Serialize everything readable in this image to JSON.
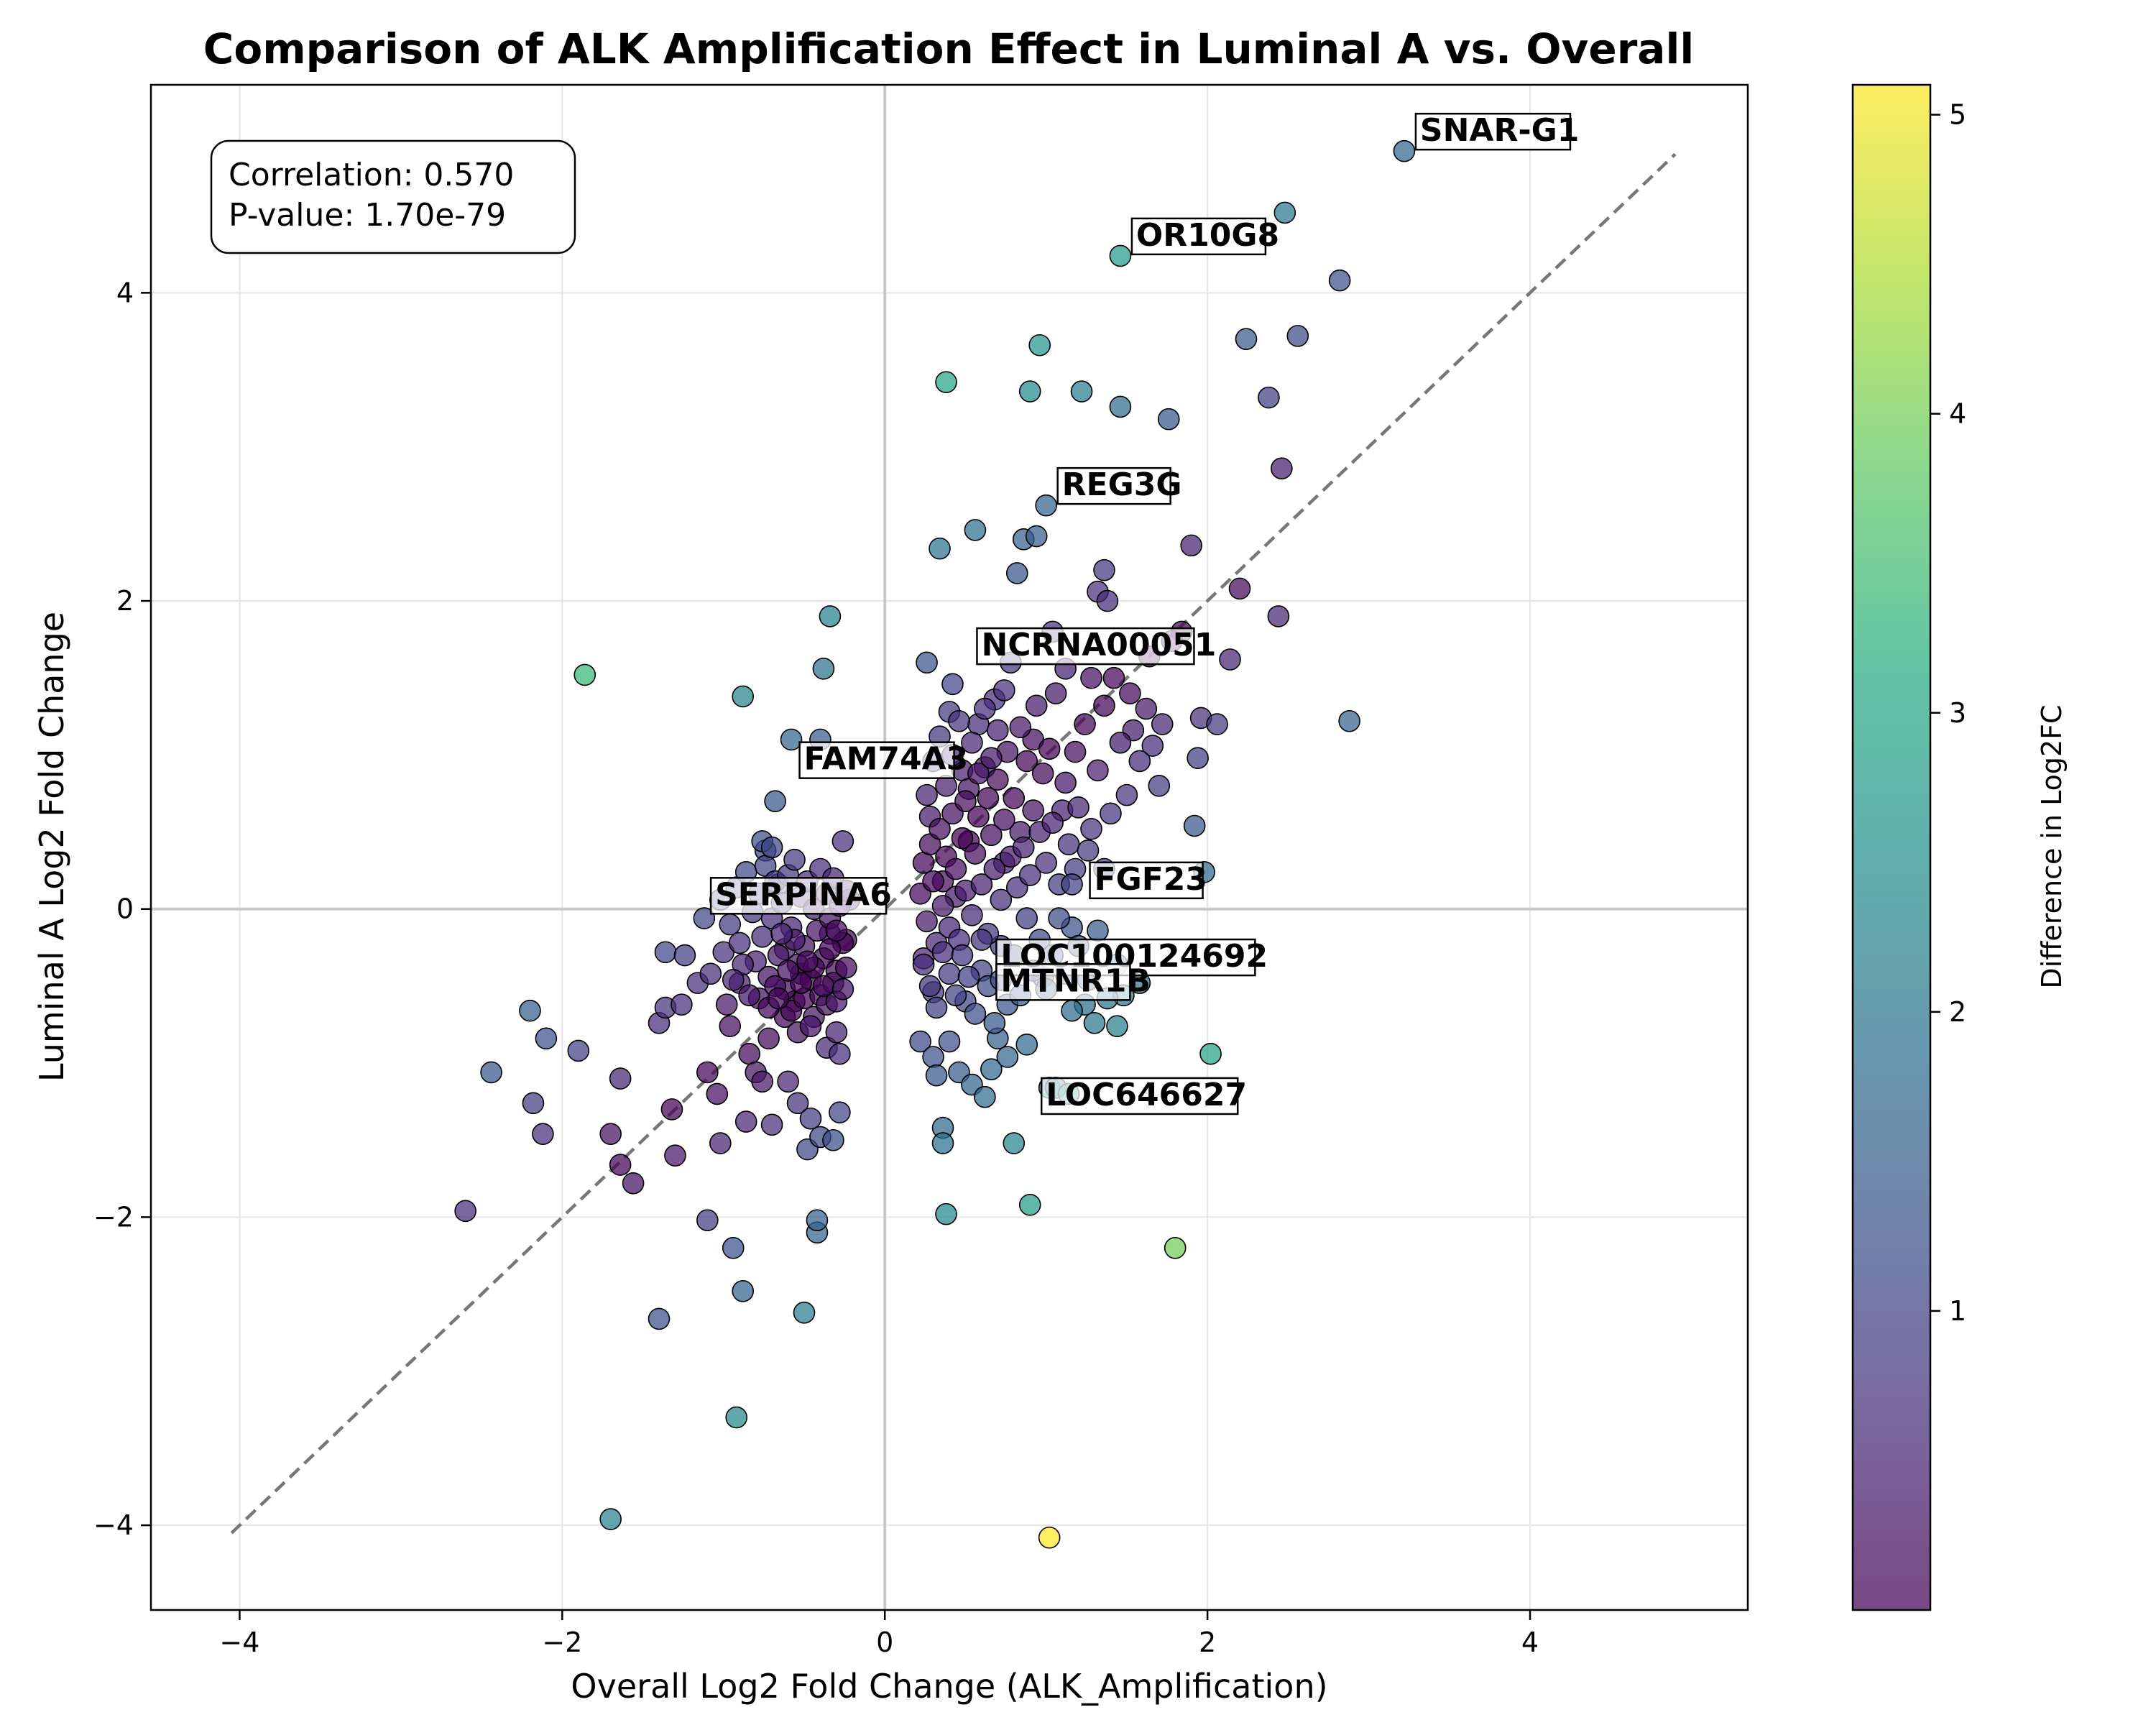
{
  "chart_data": {
    "type": "scatter",
    "title": "Comparison of ALK Amplification Effect in Luminal A vs. Overall",
    "xlabel": "Overall Log2 Fold Change (ALK_Amplification)",
    "ylabel": "Luminal A Log2 Fold Change",
    "xlim": [
      -4.55,
      5.35
    ],
    "ylim": [
      -4.55,
      5.35
    ],
    "xticks": [
      -4,
      -2,
      0,
      2,
      4
    ],
    "yticks": [
      -4,
      -2,
      0,
      2,
      4
    ],
    "xtick_labels": [
      "−4",
      "−2",
      "0",
      "2",
      "4"
    ],
    "ytick_labels": [
      "−4",
      "−2",
      "0",
      "2",
      "4"
    ],
    "grid": true,
    "reference_lines": {
      "x0": true,
      "y0": true,
      "diagonal": [
        [
          -4.05,
          -4.05
        ],
        [
          4.9,
          4.9
        ]
      ]
    },
    "stats": {
      "correlation": "Correlation: 0.570",
      "pvalue": "P-value: 1.70e-79"
    },
    "colorbar": {
      "label": "Difference in Log2FC",
      "range": [
        0.0,
        5.1
      ],
      "ticks": [
        1,
        2,
        3,
        4,
        5
      ],
      "tick_labels": [
        "1",
        "2",
        "3",
        "4",
        "5"
      ],
      "colormap": "viridis"
    },
    "annotated_genes": [
      {
        "name": "SNAR-G1",
        "x": 3.22,
        "y": 4.92
      },
      {
        "name": "OR10G8",
        "x": 1.46,
        "y": 4.24
      },
      {
        "name": "REG3G",
        "x": 1.0,
        "y": 2.62
      },
      {
        "name": "NCRNA00051",
        "x": 0.5,
        "y": 1.58
      },
      {
        "name": "FAM74A3",
        "x": -0.6,
        "y": 0.84
      },
      {
        "name": "SERPINA6",
        "x": -1.15,
        "y": -0.04
      },
      {
        "name": "FGF23",
        "x": 1.2,
        "y": 0.06
      },
      {
        "name": "LOC100124692",
        "x": 0.62,
        "y": -0.44
      },
      {
        "name": "MTNR1B",
        "x": 0.62,
        "y": -0.6
      },
      {
        "name": "LOC646627",
        "x": 0.9,
        "y": -1.34
      }
    ],
    "points": [
      [
        -2.6,
        -1.96
      ],
      [
        -2.44,
        -1.06
      ],
      [
        -2.2,
        -0.66
      ],
      [
        -2.18,
        -1.26
      ],
      [
        -2.12,
        -1.46
      ],
      [
        -2.1,
        -0.84
      ],
      [
        -1.9,
        -0.92
      ],
      [
        -1.86,
        1.52
      ],
      [
        -1.7,
        -1.46
      ],
      [
        -1.7,
        -3.96
      ],
      [
        -1.64,
        -1.1
      ],
      [
        -1.64,
        -1.66
      ],
      [
        -1.56,
        -1.78
      ],
      [
        -1.4,
        -2.66
      ],
      [
        -1.4,
        -0.74
      ],
      [
        -1.36,
        -0.64
      ],
      [
        -1.36,
        -0.28
      ],
      [
        -1.32,
        -1.3
      ],
      [
        -1.3,
        -1.6
      ],
      [
        -1.26,
        -0.62
      ],
      [
        -1.24,
        -0.3
      ],
      [
        -1.16,
        -0.48
      ],
      [
        -1.12,
        -0.06
      ],
      [
        -1.1,
        -1.06
      ],
      [
        -1.1,
        -2.02
      ],
      [
        -1.08,
        -0.42
      ],
      [
        -1.04,
        -1.2
      ],
      [
        -1.02,
        -1.52
      ],
      [
        -1.0,
        -0.28
      ],
      [
        -0.96,
        -0.76
      ],
      [
        -0.94,
        -2.2
      ],
      [
        -0.92,
        -3.3
      ],
      [
        -0.9,
        -0.48
      ],
      [
        -0.88,
        -2.48
      ],
      [
        -0.88,
        1.38
      ],
      [
        -0.86,
        -1.38
      ],
      [
        -0.84,
        -0.94
      ],
      [
        -0.8,
        -1.06
      ],
      [
        -0.78,
        -0.58
      ],
      [
        -0.76,
        -1.12
      ],
      [
        -0.74,
        0.38
      ],
      [
        -0.72,
        -0.84
      ],
      [
        -0.7,
        -1.4
      ],
      [
        -0.68,
        0.7
      ],
      [
        -0.66,
        0.16
      ],
      [
        -0.62,
        -0.26
      ],
      [
        -0.6,
        -1.12
      ],
      [
        -0.58,
        1.1
      ],
      [
        -0.56,
        -0.6
      ],
      [
        -0.54,
        -1.26
      ],
      [
        -0.52,
        -0.42
      ],
      [
        -0.5,
        -2.62
      ],
      [
        -0.48,
        -1.56
      ],
      [
        -0.46,
        -1.36
      ],
      [
        -0.44,
        -0.7
      ],
      [
        -0.42,
        -2.1
      ],
      [
        -0.42,
        -2.02
      ],
      [
        -0.4,
        1.1
      ],
      [
        -0.4,
        -1.48
      ],
      [
        -0.38,
        1.56
      ],
      [
        -0.36,
        -0.9
      ],
      [
        -0.34,
        1.9
      ],
      [
        -0.34,
        -0.16
      ],
      [
        -0.32,
        -1.5
      ],
      [
        -0.3,
        -0.8
      ],
      [
        -0.28,
        -1.32
      ],
      [
        -0.28,
        -0.94
      ],
      [
        -0.26,
        0.44
      ],
      [
        -0.24,
        -0.2
      ],
      [
        -0.22,
        0.06
      ],
      [
        -1.02,
        0.06
      ],
      [
        -0.96,
        -0.1
      ],
      [
        -0.92,
        0.14
      ],
      [
        -0.9,
        -0.22
      ],
      [
        -0.86,
        0.24
      ],
      [
        -0.82,
        -0.02
      ],
      [
        -0.8,
        -0.34
      ],
      [
        -0.78,
        0.1
      ],
      [
        -0.76,
        -0.18
      ],
      [
        -0.74,
        0.28
      ],
      [
        -0.72,
        -0.44
      ],
      [
        -0.7,
        -0.06
      ],
      [
        -0.68,
        0.18
      ],
      [
        -0.66,
        -0.3
      ],
      [
        -0.64,
        0.04
      ],
      [
        -0.62,
        -0.52
      ],
      [
        -0.6,
        0.22
      ],
      [
        -0.58,
        -0.12
      ],
      [
        -0.56,
        0.32
      ],
      [
        -0.54,
        -0.36
      ],
      [
        -0.52,
        0.08
      ],
      [
        -0.5,
        -0.24
      ],
      [
        -0.48,
        0.18
      ],
      [
        -0.46,
        -0.46
      ],
      [
        -0.44,
        0.0
      ],
      [
        -0.42,
        -0.14
      ],
      [
        -0.4,
        0.26
      ],
      [
        -0.38,
        -0.32
      ],
      [
        -0.36,
        0.1
      ],
      [
        -0.34,
        -0.06
      ],
      [
        -0.32,
        0.2
      ],
      [
        -0.3,
        -0.4
      ],
      [
        -0.28,
        0.02
      ],
      [
        -0.26,
        -0.22
      ],
      [
        -0.24,
        0.12
      ],
      [
        -0.62,
        -0.7
      ],
      [
        -0.58,
        -0.66
      ],
      [
        -0.54,
        -0.8
      ],
      [
        -0.5,
        -0.58
      ],
      [
        -0.46,
        -0.76
      ],
      [
        -0.72,
        -0.64
      ],
      [
        -0.68,
        -0.5
      ],
      [
        -0.84,
        -0.56
      ],
      [
        -0.88,
        -0.36
      ],
      [
        -0.94,
        -0.46
      ],
      [
        -0.98,
        -0.62
      ],
      [
        -0.76,
        0.44
      ],
      [
        -0.7,
        0.4
      ],
      [
        -0.4,
        -0.56
      ],
      [
        -0.36,
        -0.62
      ],
      [
        -0.32,
        -0.48
      ],
      [
        -0.3,
        -0.6
      ],
      [
        -0.44,
        -0.38
      ],
      [
        -0.38,
        -0.5
      ],
      [
        -0.26,
        -0.52
      ],
      [
        -0.24,
        -0.38
      ],
      [
        -0.52,
        -0.48
      ],
      [
        -0.48,
        -0.34
      ],
      [
        -0.56,
        -0.2
      ],
      [
        -0.6,
        -0.4
      ],
      [
        -0.64,
        -0.16
      ],
      [
        -0.66,
        -0.58
      ],
      [
        -0.34,
        -0.26
      ],
      [
        -0.3,
        -0.14
      ],
      [
        0.22,
        -0.86
      ],
      [
        0.24,
        -0.32
      ],
      [
        0.26,
        1.6
      ],
      [
        0.28,
        0.6
      ],
      [
        0.3,
        -0.54
      ],
      [
        0.3,
        -0.96
      ],
      [
        0.32,
        -1.08
      ],
      [
        0.34,
        2.34
      ],
      [
        0.36,
        0.18
      ],
      [
        0.36,
        -1.42
      ],
      [
        0.36,
        -1.52
      ],
      [
        0.38,
        3.42
      ],
      [
        0.38,
        -1.98
      ],
      [
        0.4,
        1.28
      ],
      [
        0.4,
        -0.86
      ],
      [
        0.42,
        1.46
      ],
      [
        0.44,
        0.08
      ],
      [
        0.46,
        -1.06
      ],
      [
        0.48,
        0.9
      ],
      [
        0.5,
        -0.6
      ],
      [
        0.52,
        0.44
      ],
      [
        0.54,
        -1.14
      ],
      [
        0.56,
        2.46
      ],
      [
        0.58,
        1.2
      ],
      [
        0.6,
        -0.4
      ],
      [
        0.62,
        -1.22
      ],
      [
        0.64,
        0.72
      ],
      [
        0.66,
        -1.04
      ],
      [
        0.68,
        1.36
      ],
      [
        0.7,
        -0.84
      ],
      [
        0.72,
        -0.24
      ],
      [
        0.74,
        0.3
      ],
      [
        0.76,
        -0.96
      ],
      [
        0.78,
        1.6
      ],
      [
        0.8,
        -1.52
      ],
      [
        0.82,
        2.18
      ],
      [
        0.84,
        0.5
      ],
      [
        0.86,
        2.4
      ],
      [
        0.88,
        -0.88
      ],
      [
        0.9,
        3.36
      ],
      [
        0.9,
        -1.92
      ],
      [
        0.92,
        1.1
      ],
      [
        0.94,
        2.42
      ],
      [
        0.96,
        3.66
      ],
      [
        0.98,
        -0.44
      ],
      [
        1.0,
        2.62
      ],
      [
        1.02,
        -1.16
      ],
      [
        1.04,
        1.8
      ],
      [
        1.06,
        -1.16
      ],
      [
        1.1,
        0.64
      ],
      [
        1.12,
        1.56
      ],
      [
        1.14,
        -1.2
      ],
      [
        1.16,
        -0.12
      ],
      [
        1.18,
        0.26
      ],
      [
        1.22,
        3.36
      ],
      [
        1.24,
        -0.62
      ],
      [
        1.28,
        1.5
      ],
      [
        1.3,
        -0.74
      ],
      [
        1.32,
        2.06
      ],
      [
        1.36,
        2.2
      ],
      [
        1.38,
        2.0
      ],
      [
        1.42,
        1.5
      ],
      [
        1.44,
        -0.76
      ],
      [
        1.46,
        4.24
      ],
      [
        1.46,
        3.26
      ],
      [
        1.48,
        -0.56
      ],
      [
        1.5,
        0.74
      ],
      [
        1.54,
        1.16
      ],
      [
        1.58,
        -0.48
      ],
      [
        1.62,
        1.3
      ],
      [
        1.66,
        1.06
      ],
      [
        1.7,
        0.8
      ],
      [
        1.76,
        3.18
      ],
      [
        1.8,
        -2.2
      ],
      [
        1.84,
        1.8
      ],
      [
        1.9,
        2.36
      ],
      [
        1.92,
        0.54
      ],
      [
        1.94,
        0.98
      ],
      [
        1.96,
        1.24
      ],
      [
        1.98,
        0.24
      ],
      [
        2.02,
        -0.94
      ],
      [
        2.06,
        1.2
      ],
      [
        2.14,
        1.62
      ],
      [
        2.2,
        2.08
      ],
      [
        2.24,
        3.7
      ],
      [
        2.38,
        3.32
      ],
      [
        2.44,
        1.9
      ],
      [
        2.46,
        2.86
      ],
      [
        2.48,
        4.52
      ],
      [
        2.56,
        3.72
      ],
      [
        2.82,
        4.08
      ],
      [
        2.88,
        1.22
      ],
      [
        3.22,
        4.92
      ],
      [
        1.02,
        -4.08
      ],
      [
        0.22,
        0.1
      ],
      [
        0.24,
        0.3
      ],
      [
        0.26,
        -0.08
      ],
      [
        0.28,
        0.42
      ],
      [
        0.3,
        0.18
      ],
      [
        0.32,
        -0.22
      ],
      [
        0.34,
        0.52
      ],
      [
        0.36,
        0.02
      ],
      [
        0.38,
        0.34
      ],
      [
        0.4,
        -0.12
      ],
      [
        0.42,
        0.62
      ],
      [
        0.44,
        0.26
      ],
      [
        0.46,
        -0.2
      ],
      [
        0.48,
        0.46
      ],
      [
        0.5,
        0.12
      ],
      [
        0.52,
        0.78
      ],
      [
        0.54,
        -0.04
      ],
      [
        0.56,
        0.36
      ],
      [
        0.58,
        0.6
      ],
      [
        0.6,
        0.16
      ],
      [
        0.62,
        0.92
      ],
      [
        0.64,
        -0.16
      ],
      [
        0.66,
        0.48
      ],
      [
        0.68,
        0.26
      ],
      [
        0.7,
        0.84
      ],
      [
        0.72,
        0.06
      ],
      [
        0.74,
        0.58
      ],
      [
        0.76,
        1.02
      ],
      [
        0.78,
        0.34
      ],
      [
        0.8,
        0.72
      ],
      [
        0.82,
        0.14
      ],
      [
        0.84,
        1.18
      ],
      [
        0.86,
        0.4
      ],
      [
        0.88,
        0.96
      ],
      [
        0.9,
        0.22
      ],
      [
        0.92,
        0.64
      ],
      [
        0.94,
        1.32
      ],
      [
        0.96,
        0.5
      ],
      [
        0.98,
        0.88
      ],
      [
        1.0,
        0.3
      ],
      [
        1.02,
        1.04
      ],
      [
        1.04,
        0.56
      ],
      [
        1.06,
        1.4
      ],
      [
        1.08,
        0.16
      ],
      [
        1.12,
        0.82
      ],
      [
        1.14,
        0.42
      ],
      [
        1.18,
        1.02
      ],
      [
        1.2,
        0.66
      ],
      [
        1.24,
        1.2
      ],
      [
        1.28,
        0.52
      ],
      [
        1.32,
        0.9
      ],
      [
        1.36,
        1.32
      ],
      [
        1.4,
        0.62
      ],
      [
        1.46,
        1.08
      ],
      [
        1.52,
        1.4
      ],
      [
        1.58,
        0.96
      ],
      [
        1.64,
        1.64
      ],
      [
        1.72,
        1.2
      ],
      [
        1.78,
        1.74
      ],
      [
        0.26,
        0.74
      ],
      [
        0.3,
        0.96
      ],
      [
        0.34,
        1.12
      ],
      [
        0.38,
        0.8
      ],
      [
        0.42,
        1.0
      ],
      [
        0.46,
        1.22
      ],
      [
        0.5,
        0.7
      ],
      [
        0.54,
        1.08
      ],
      [
        0.58,
        0.88
      ],
      [
        0.62,
        1.3
      ],
      [
        0.66,
        0.98
      ],
      [
        0.7,
        1.16
      ],
      [
        0.74,
        1.42
      ],
      [
        0.24,
        -0.36
      ],
      [
        0.28,
        -0.5
      ],
      [
        0.32,
        -0.64
      ],
      [
        0.36,
        -0.28
      ],
      [
        0.4,
        -0.42
      ],
      [
        0.44,
        -0.56
      ],
      [
        0.48,
        -0.3
      ],
      [
        0.52,
        -0.44
      ],
      [
        0.56,
        -0.68
      ],
      [
        0.6,
        -0.2
      ],
      [
        0.64,
        -0.5
      ],
      [
        0.68,
        -0.74
      ],
      [
        0.72,
        -0.46
      ],
      [
        0.76,
        -0.62
      ],
      [
        0.8,
        -0.3
      ],
      [
        0.84,
        -0.56
      ],
      [
        0.88,
        -0.06
      ],
      [
        0.92,
        -0.4
      ],
      [
        0.96,
        -0.2
      ],
      [
        1.0,
        -0.52
      ],
      [
        1.04,
        -0.3
      ],
      [
        1.08,
        -0.06
      ],
      [
        1.12,
        -0.42
      ],
      [
        1.16,
        -0.66
      ],
      [
        1.2,
        -0.24
      ],
      [
        1.26,
        -0.46
      ],
      [
        1.32,
        -0.14
      ],
      [
        1.38,
        -0.58
      ],
      [
        1.44,
        -0.36
      ],
      [
        1.36,
        0.26
      ],
      [
        1.26,
        0.38
      ],
      [
        1.16,
        0.16
      ]
    ]
  }
}
